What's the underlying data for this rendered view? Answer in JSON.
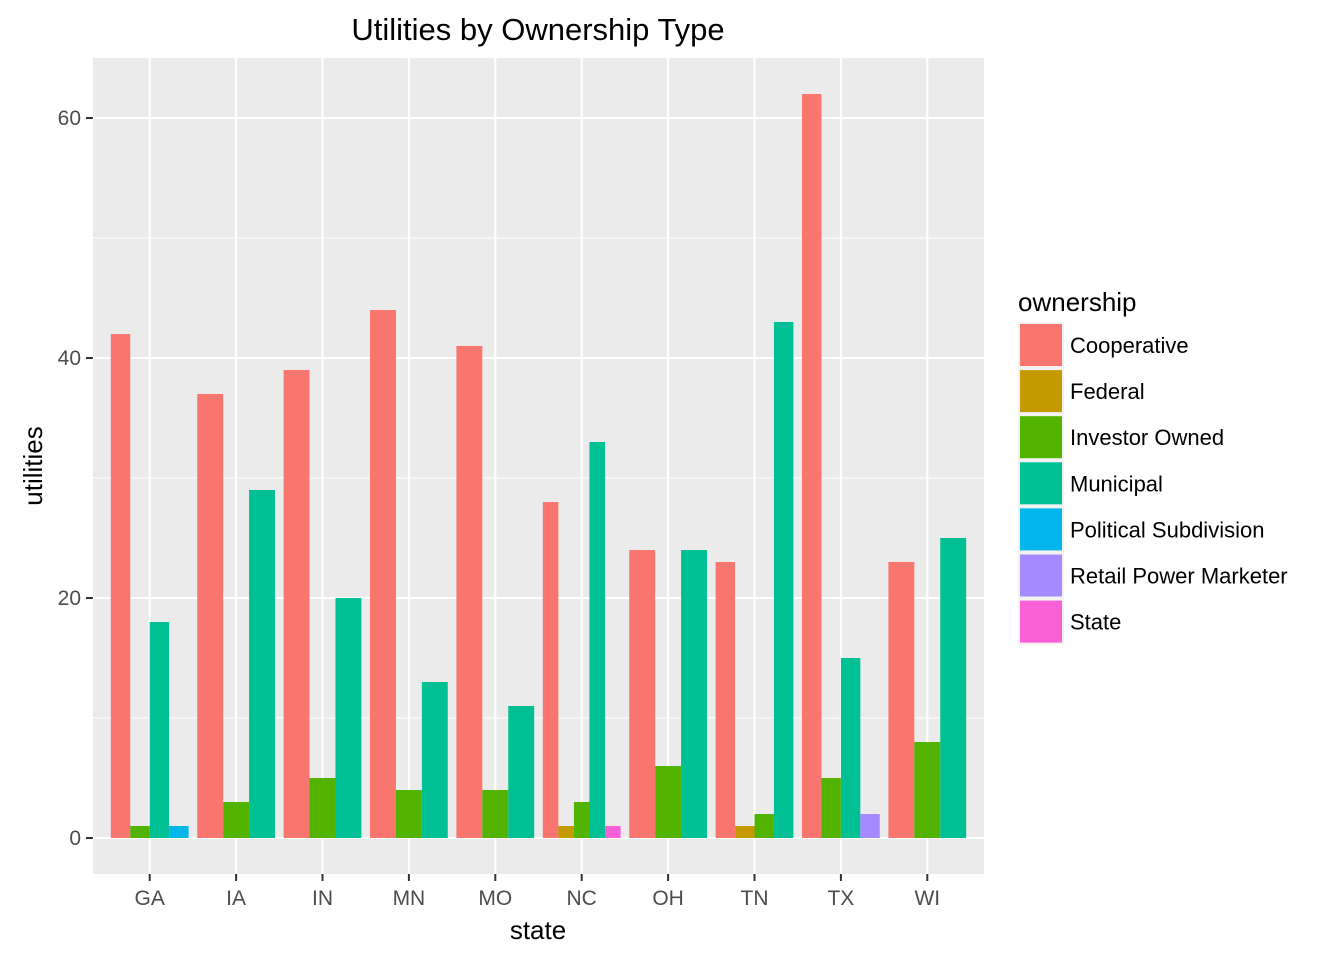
{
  "chart_data": {
    "type": "bar",
    "title": "Utilities by Ownership Type",
    "xlabel": "state",
    "ylabel": "utilities",
    "ylim": [
      -3,
      65
    ],
    "yticks": [
      0,
      20,
      40,
      60
    ],
    "grid": true,
    "legend": {
      "title": "ownership",
      "placement": "right"
    },
    "categories": [
      "GA",
      "IA",
      "IN",
      "MN",
      "MO",
      "NC",
      "OH",
      "TN",
      "TX",
      "WI"
    ],
    "series": [
      {
        "name": "Cooperative",
        "color": "#F8766D",
        "points": [
          {
            "x": "GA",
            "y": 42
          },
          {
            "x": "IA",
            "y": 37
          },
          {
            "x": "IN",
            "y": 39
          },
          {
            "x": "MN",
            "y": 44
          },
          {
            "x": "MO",
            "y": 41
          },
          {
            "x": "NC",
            "y": 28
          },
          {
            "x": "OH",
            "y": 24
          },
          {
            "x": "TN",
            "y": 23
          },
          {
            "x": "TX",
            "y": 62
          },
          {
            "x": "WI",
            "y": 23
          }
        ]
      },
      {
        "name": "Federal",
        "color": "#C49A00",
        "points": [
          {
            "x": "NC",
            "y": 1
          },
          {
            "x": "TN",
            "y": 1
          }
        ]
      },
      {
        "name": "Investor Owned",
        "color": "#53B400",
        "points": [
          {
            "x": "GA",
            "y": 1
          },
          {
            "x": "IA",
            "y": 3
          },
          {
            "x": "IN",
            "y": 5
          },
          {
            "x": "MN",
            "y": 4
          },
          {
            "x": "MO",
            "y": 4
          },
          {
            "x": "NC",
            "y": 3
          },
          {
            "x": "OH",
            "y": 6
          },
          {
            "x": "TN",
            "y": 2
          },
          {
            "x": "TX",
            "y": 5
          },
          {
            "x": "WI",
            "y": 8
          }
        ]
      },
      {
        "name": "Municipal",
        "color": "#00C094",
        "points": [
          {
            "x": "GA",
            "y": 18
          },
          {
            "x": "IA",
            "y": 29
          },
          {
            "x": "IN",
            "y": 20
          },
          {
            "x": "MN",
            "y": 13
          },
          {
            "x": "MO",
            "y": 11
          },
          {
            "x": "NC",
            "y": 33
          },
          {
            "x": "OH",
            "y": 24
          },
          {
            "x": "TN",
            "y": 43
          },
          {
            "x": "TX",
            "y": 15
          },
          {
            "x": "WI",
            "y": 25
          }
        ]
      },
      {
        "name": "Political Subdivision",
        "color": "#00B6EB",
        "points": [
          {
            "x": "GA",
            "y": 1
          }
        ]
      },
      {
        "name": "Retail Power Marketer",
        "color": "#A58AFF",
        "points": [
          {
            "x": "TX",
            "y": 2
          }
        ]
      },
      {
        "name": "State",
        "color": "#FB61D7",
        "points": [
          {
            "x": "NC",
            "y": 1
          }
        ]
      }
    ]
  }
}
